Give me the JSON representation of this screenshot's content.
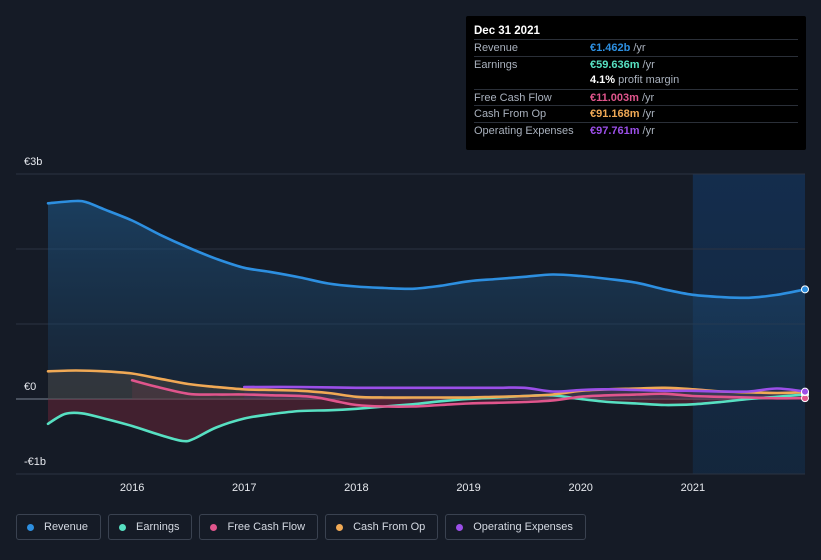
{
  "tooltip": {
    "date": "Dec 31 2021",
    "rows": [
      {
        "label": "Revenue",
        "value": "€1.462b",
        "unit": "/yr",
        "color": "#2d8fe0"
      },
      {
        "label": "Earnings",
        "value": "€59.636m",
        "unit": "/yr",
        "color": "#57e0c2"
      },
      {
        "label": "",
        "value": "4.1%",
        "unit": "profit margin",
        "color": "#ffffff"
      },
      {
        "label": "Free Cash Flow",
        "value": "€11.003m",
        "unit": "/yr",
        "color": "#e0558c"
      },
      {
        "label": "Cash From Op",
        "value": "€91.168m",
        "unit": "/yr",
        "color": "#f0a955"
      },
      {
        "label": "Operating Expenses",
        "value": "€97.761m",
        "unit": "/yr",
        "color": "#9b4fe8"
      }
    ]
  },
  "legend": [
    {
      "label": "Revenue",
      "color": "#2d8fe0"
    },
    {
      "label": "Earnings",
      "color": "#57e0c2"
    },
    {
      "label": "Free Cash Flow",
      "color": "#e0558c"
    },
    {
      "label": "Cash From Op",
      "color": "#f0a955"
    },
    {
      "label": "Operating Expenses",
      "color": "#9b4fe8"
    }
  ],
  "chart_data": {
    "type": "area",
    "y_tick_labels": [
      "€3b",
      "€0",
      "-€1b"
    ],
    "x_tick_labels": [
      "2016",
      "2017",
      "2018",
      "2019",
      "2020",
      "2021"
    ],
    "ylim": [
      -1.0,
      3.0
    ],
    "xlim": [
      2015.25,
      2022.0
    ],
    "y_unit": "billion EUR",
    "grid": true,
    "highlight_range": [
      2021.0,
      2022.0
    ],
    "series": [
      {
        "name": "Revenue",
        "color": "#2d8fe0",
        "x": [
          2015.25,
          2015.5,
          2015.6,
          2015.75,
          2016.0,
          2016.25,
          2016.5,
          2016.75,
          2017.0,
          2017.25,
          2017.5,
          2017.75,
          2018.0,
          2018.25,
          2018.5,
          2018.75,
          2019.0,
          2019.25,
          2019.5,
          2019.75,
          2020.0,
          2020.25,
          2020.5,
          2020.75,
          2021.0,
          2021.25,
          2021.5,
          2021.75,
          2022.0
        ],
        "y": [
          2.61,
          2.64,
          2.62,
          2.53,
          2.38,
          2.19,
          2.02,
          1.87,
          1.75,
          1.69,
          1.62,
          1.54,
          1.5,
          1.48,
          1.47,
          1.51,
          1.57,
          1.6,
          1.63,
          1.66,
          1.64,
          1.6,
          1.55,
          1.46,
          1.39,
          1.36,
          1.35,
          1.39,
          1.462
        ]
      },
      {
        "name": "Earnings",
        "color": "#57e0c2",
        "x": [
          2015.25,
          2015.4,
          2015.55,
          2015.75,
          2016.0,
          2016.25,
          2016.45,
          2016.55,
          2016.75,
          2017.0,
          2017.25,
          2017.5,
          2017.75,
          2018.0,
          2018.25,
          2018.5,
          2018.75,
          2019.0,
          2019.25,
          2019.5,
          2019.75,
          2020.0,
          2020.25,
          2020.5,
          2020.75,
          2021.0,
          2021.25,
          2021.5,
          2021.75,
          2022.0
        ],
        "y": [
          -0.33,
          -0.2,
          -0.19,
          -0.26,
          -0.36,
          -0.48,
          -0.56,
          -0.53,
          -0.38,
          -0.26,
          -0.2,
          -0.16,
          -0.15,
          -0.13,
          -0.1,
          -0.07,
          -0.03,
          0.0,
          0.02,
          0.04,
          0.05,
          0.0,
          -0.04,
          -0.06,
          -0.08,
          -0.07,
          -0.04,
          0.0,
          0.03,
          0.06
        ]
      },
      {
        "name": "Free Cash Flow",
        "color": "#e0558c",
        "x": [
          2016.0,
          2016.2,
          2016.5,
          2016.75,
          2017.0,
          2017.25,
          2017.6,
          2017.85,
          2018.0,
          2018.25,
          2018.5,
          2018.75,
          2019.0,
          2019.25,
          2019.5,
          2019.75,
          2020.0,
          2020.25,
          2020.5,
          2020.75,
          2021.0,
          2021.25,
          2021.5,
          2021.75,
          2022.0
        ],
        "y": [
          0.25,
          0.17,
          0.07,
          0.06,
          0.06,
          0.05,
          0.03,
          -0.04,
          -0.08,
          -0.1,
          -0.1,
          -0.08,
          -0.06,
          -0.05,
          -0.04,
          -0.02,
          0.03,
          0.05,
          0.06,
          0.07,
          0.04,
          0.03,
          0.02,
          0.01,
          0.011
        ]
      },
      {
        "name": "Cash From Op",
        "color": "#f0a955",
        "x": [
          2015.25,
          2015.5,
          2015.75,
          2016.0,
          2016.25,
          2016.5,
          2016.75,
          2017.0,
          2017.25,
          2017.5,
          2017.75,
          2018.0,
          2018.25,
          2018.5,
          2018.75,
          2019.0,
          2019.25,
          2019.5,
          2019.75,
          2020.0,
          2020.25,
          2020.5,
          2020.75,
          2021.0,
          2021.25,
          2021.5,
          2021.75,
          2022.0
        ],
        "y": [
          0.37,
          0.38,
          0.37,
          0.34,
          0.27,
          0.2,
          0.16,
          0.13,
          0.12,
          0.11,
          0.08,
          0.03,
          0.02,
          0.02,
          0.02,
          0.02,
          0.03,
          0.04,
          0.06,
          0.11,
          0.13,
          0.14,
          0.15,
          0.13,
          0.1,
          0.09,
          0.08,
          0.091
        ]
      },
      {
        "name": "Operating Expenses",
        "color": "#9b4fe8",
        "x": [
          2017.0,
          2017.5,
          2018.0,
          2018.5,
          2019.0,
          2019.25,
          2019.5,
          2019.75,
          2020.0,
          2020.25,
          2020.5,
          2020.75,
          2021.0,
          2021.25,
          2021.5,
          2021.75,
          2022.0
        ],
        "y": [
          0.16,
          0.16,
          0.15,
          0.15,
          0.15,
          0.15,
          0.15,
          0.1,
          0.12,
          0.13,
          0.12,
          0.11,
          0.11,
          0.1,
          0.1,
          0.14,
          0.098
        ]
      }
    ]
  }
}
